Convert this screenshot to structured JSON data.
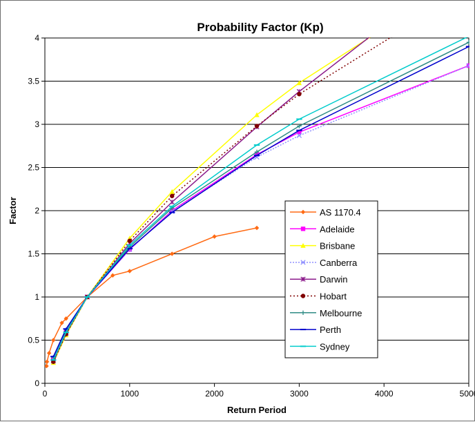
{
  "chart_data": {
    "type": "line",
    "title": "Probability Factor (Kp)",
    "xlabel": "Return Period",
    "ylabel": "Factor",
    "xlim": [
      0,
      5000
    ],
    "ylim": [
      0,
      4
    ],
    "xticks": [
      0,
      1000,
      2000,
      3000,
      4000,
      5000
    ],
    "xtick_labels": [
      "0",
      "1000",
      "2000",
      "3000",
      "4000",
      "5000"
    ],
    "yticks": [
      0,
      0.5,
      1,
      1.5,
      2,
      2.5,
      3,
      3.5,
      4
    ],
    "ytick_labels": [
      "0",
      "0.5",
      "1",
      "1.5",
      "2",
      "2.5",
      "3",
      "3.5",
      "4"
    ],
    "grid": "horizontal major",
    "legend_position": "right",
    "series": [
      {
        "name": "AS 1170.4",
        "color": "#ff6a13",
        "marker": "diamond",
        "dash": "",
        "x": [
          20,
          25,
          50,
          100,
          200,
          250,
          500,
          800,
          1000,
          1500,
          2000,
          2500
        ],
        "y": [
          0.2,
          0.25,
          0.35,
          0.5,
          0.7,
          0.75,
          1.0,
          1.25,
          1.3,
          1.5,
          1.7,
          1.8
        ]
      },
      {
        "name": "Adelaide",
        "color": "#ff00ff",
        "marker": "square",
        "dash": "",
        "x": [
          100,
          250,
          500,
          1000,
          1500,
          2500,
          3000,
          5000
        ],
        "y": [
          0.28,
          0.6,
          1.0,
          1.55,
          2.0,
          2.65,
          2.91,
          3.68
        ]
      },
      {
        "name": "Brisbane",
        "color": "#ffff00",
        "marker": "triangle",
        "dash": "",
        "x": [
          100,
          250,
          500,
          1000,
          1500,
          2500,
          3000,
          3900
        ],
        "y": [
          0.24,
          0.56,
          1.0,
          1.68,
          2.22,
          3.11,
          3.48,
          4.05
        ]
      },
      {
        "name": "Canberra",
        "color": "#8f8fff",
        "marker": "x",
        "dash": "2,2",
        "x": [
          100,
          250,
          500,
          1000,
          1500,
          2500,
          3000,
          5000
        ],
        "y": [
          0.29,
          0.61,
          1.0,
          1.55,
          1.99,
          2.62,
          2.87,
          3.68
        ]
      },
      {
        "name": "Darwin",
        "color": "#8b1a8b",
        "marker": "star",
        "dash": "",
        "x": [
          100,
          250,
          500,
          1000,
          1500,
          2500,
          3000,
          3880
        ],
        "y": [
          0.26,
          0.58,
          1.0,
          1.62,
          2.1,
          2.97,
          3.38,
          4.05
        ]
      },
      {
        "name": "Hobart",
        "color": "#800000",
        "marker": "circle",
        "dash": "2,3",
        "x": [
          100,
          250,
          500,
          1000,
          1500,
          2500,
          3000,
          4150
        ],
        "y": [
          0.25,
          0.57,
          1.0,
          1.65,
          2.17,
          2.98,
          3.35,
          4.05
        ]
      },
      {
        "name": "Melbourne",
        "color": "#2e8b85",
        "marker": "plus",
        "dash": "",
        "x": [
          100,
          250,
          500,
          1000,
          1500,
          2500,
          3000,
          5000
        ],
        "y": [
          0.3,
          0.62,
          1.0,
          1.58,
          2.03,
          2.68,
          2.98,
          3.95
        ]
      },
      {
        "name": "Perth",
        "color": "#0000cc",
        "marker": "dash",
        "dash": "",
        "x": [
          100,
          250,
          500,
          1000,
          1500,
          2500,
          3000,
          5000
        ],
        "y": [
          0.31,
          0.63,
          1.0,
          1.56,
          1.98,
          2.64,
          2.93,
          3.9
        ]
      },
      {
        "name": "Sydney",
        "color": "#00cccc",
        "marker": "dash",
        "dash": "",
        "x": [
          100,
          250,
          500,
          1000,
          1500,
          2500,
          3000,
          5000
        ],
        "y": [
          0.27,
          0.59,
          1.0,
          1.6,
          2.05,
          2.76,
          3.06,
          4.02
        ]
      }
    ]
  }
}
